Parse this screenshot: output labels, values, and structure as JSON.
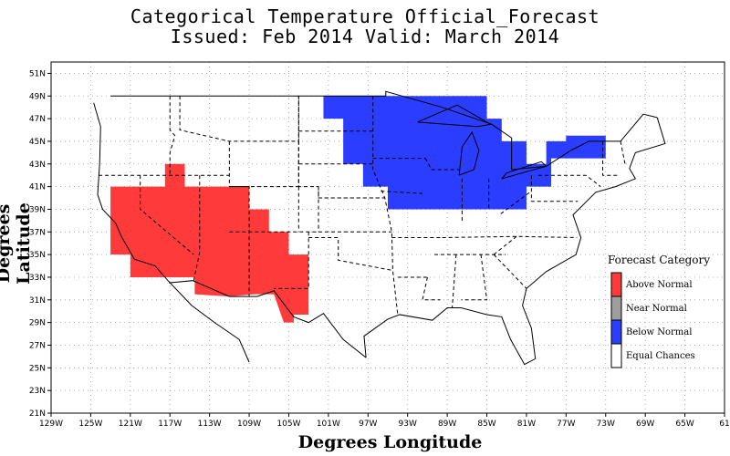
{
  "title_line1": "Categorical Temperature Official_Forecast",
  "title_line2": "Issued: Feb 2014 Valid: March 2014",
  "x_axis_title": "Degrees Longitude",
  "y_axis_title": "Degrees Latitude",
  "chart_data": {
    "type": "map",
    "x_ticks": [
      "129W",
      "125W",
      "121W",
      "117W",
      "113W",
      "109W",
      "105W",
      "101W",
      "97W",
      "93W",
      "89W",
      "85W",
      "81W",
      "77W",
      "73W",
      "69W",
      "65W",
      "61"
    ],
    "y_ticks": [
      "51N",
      "49N",
      "47N",
      "45N",
      "43N",
      "41N",
      "39N",
      "37N",
      "35N",
      "33N",
      "31N",
      "29N",
      "27N",
      "25N",
      "23N",
      "21N"
    ],
    "xlim": [
      -129,
      -61
    ],
    "ylim": [
      21,
      52
    ],
    "grid": true,
    "legend": {
      "title": "Forecast Category",
      "placement": "right",
      "items": [
        {
          "label": "Above Normal",
          "color": "#ff3a3a"
        },
        {
          "label": "Near Normal",
          "color": "#9e9e9e"
        },
        {
          "label": "Below Normal",
          "color": "#2b3dff"
        },
        {
          "label": "Equal Chances",
          "color": "#ffffff"
        }
      ]
    },
    "regions": [
      {
        "category": "Above Normal",
        "color": "#ff3a3a",
        "area": "Southwest US (CA, NV, AZ, UT, NM, W TX)"
      },
      {
        "category": "Below Normal",
        "color": "#2b3dff",
        "area": "Northern Plains / Great Lakes / Northeast"
      }
    ]
  }
}
